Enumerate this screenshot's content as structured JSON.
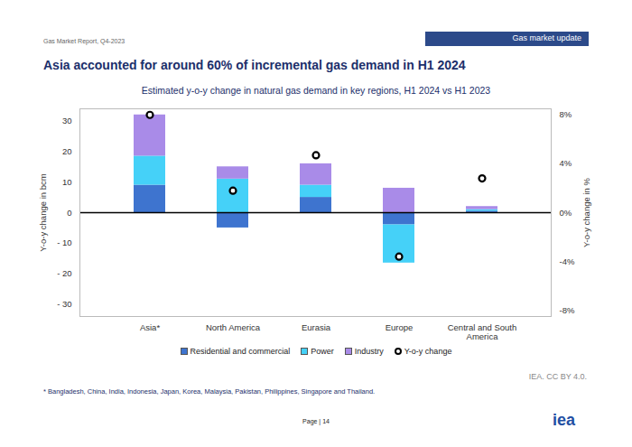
{
  "chart_data": {
    "type": "bar",
    "title": "Asia accounted for around 60% of incremental gas demand in H1 2024",
    "subtitle": "Estimated y-o-y change in natural gas demand in key regions, H1 2024 vs H1 2023",
    "stacked": true,
    "grid": false,
    "legend": "bottom",
    "y_label": "Y-o-y change in bcm",
    "y2_label": "Y-o-y change in %",
    "categories": [
      "Asia*",
      "North America",
      "Eurasia",
      "Europe",
      "Central and South America"
    ],
    "ylim": [
      -34,
      34
    ],
    "yticks": [
      {
        "value": -30,
        "label": "- 30"
      },
      {
        "value": -20,
        "label": "- 20"
      },
      {
        "value": -10,
        "label": "- 10"
      },
      0,
      10,
      20,
      30
    ],
    "y2lim": [
      -8.5,
      8.5
    ],
    "y2ticks": [
      {
        "value": -8,
        "label": "-8%"
      },
      {
        "value": -4,
        "label": "-4%"
      },
      {
        "value": 0,
        "label": "0%"
      },
      {
        "value": 4,
        "label": "4%"
      },
      {
        "value": 8,
        "label": "8%"
      }
    ],
    "series": [
      {
        "name": "Residential and commercial",
        "type": "bar",
        "color": "#3e74cf",
        "values": [
          9,
          -5,
          5,
          -4,
          0.5
        ]
      },
      {
        "name": "Power",
        "type": "bar",
        "color": "#45d1f8",
        "values": [
          9.5,
          11,
          4,
          -12.5,
          0.5
        ]
      },
      {
        "name": "Industry",
        "type": "bar",
        "color": "#a98be8",
        "values": [
          13.5,
          4,
          7,
          8,
          1
        ]
      },
      {
        "name": "Y-o-y change",
        "type": "scatter",
        "axis": "y2",
        "marker": "circle",
        "color": "#000000",
        "values": [
          8,
          1.8,
          4.7,
          -3.6,
          2.8
        ]
      }
    ]
  },
  "page": {
    "header_left": "Gas Market Report, Q4-2023",
    "header_right": "Gas market update",
    "source": "IEA. CC BY 4.0.",
    "footnote": "* Bangladesh, China, India, Indonesia, Japan, Korea, Malaysia, Pakistan, Philippines, Singapore and Thailand.",
    "page_number": "Page | 14",
    "logo": "iea"
  }
}
